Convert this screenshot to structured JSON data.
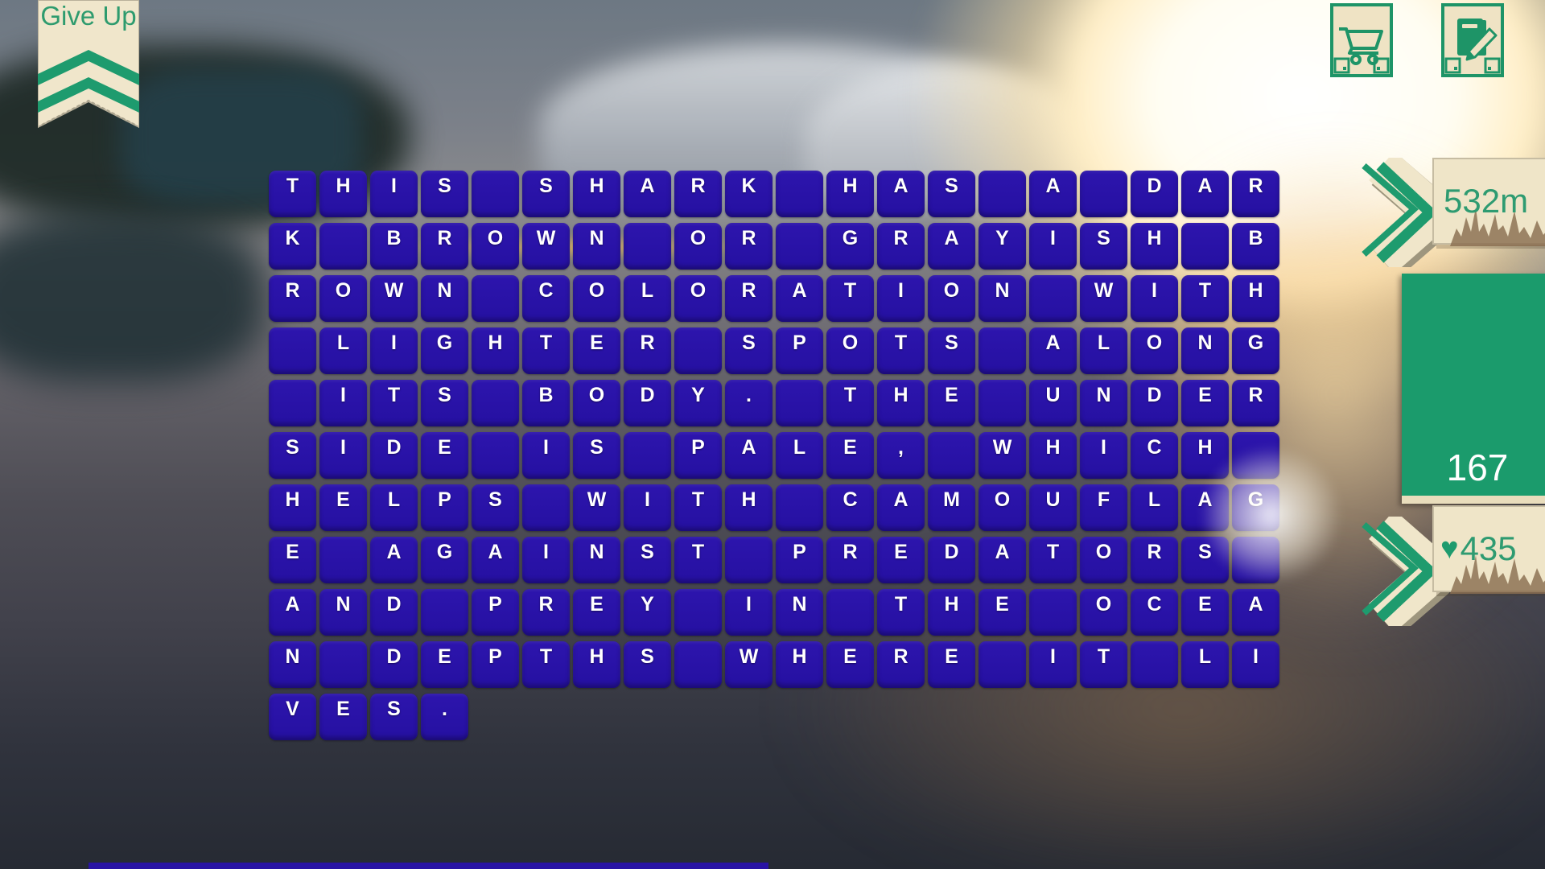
{
  "give_up": {
    "label": "Give Up"
  },
  "toolbar": {
    "cart_button": {
      "icon": "cart-icon"
    },
    "journal_button": {
      "icon": "journal-pencil-icon"
    }
  },
  "hud": {
    "distance_label": "532m",
    "score_value": "167",
    "heart_icon": "♥",
    "lives_value": "435"
  },
  "puzzle": {
    "columns": 20,
    "rows": [
      "THIS SHARK HAS A DAR",
      "K BROWN OR GRAYISH B",
      "ROWN COLORATION WITH",
      " LIGHTER SPOTS ALONG",
      " ITS BODY. THE UNDER",
      "SIDE IS PALE, WHICH ",
      "HELPS WITH CAMOUFLAG",
      "E AGAINST PREDATORS ",
      "AND PREY IN THE OCEA",
      "N DEPTHS WHERE IT LI",
      "VES."
    ],
    "sentence": "THIS SHARK HAS A DARK BROWN OR GRAYISH BROWN COLORATION WITH LIGHTER SPOTS ALONG ITS BODY. THE UNDERSIDE IS PALE, WHICH HELPS WITH CAMOUFLAGE AGAINST PREDATORS AND PREY IN THE OCEAN DEPTHS WHERE IT LIVES."
  },
  "colors": {
    "tile_blue": "#2913a4",
    "accent_green": "#1e9b6e",
    "cream": "#efe5c8",
    "score_text": "#ffffff"
  }
}
